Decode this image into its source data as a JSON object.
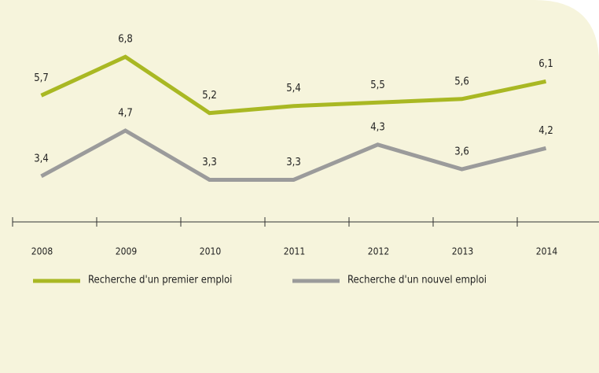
{
  "chart_data": {
    "type": "line",
    "categories": [
      "2008",
      "2009",
      "2010",
      "2011",
      "2012",
      "2013",
      "2014"
    ],
    "series": [
      {
        "name": "Recherche d'un premier emploi",
        "color": "#a9b823",
        "values": [
          5.7,
          6.8,
          5.2,
          5.4,
          5.5,
          5.6,
          6.1
        ],
        "value_labels": [
          "5,7",
          "6,8",
          "5,2",
          "5,4",
          "5,5",
          "5,6",
          "6,1"
        ]
      },
      {
        "name": "Recherche d'un nouvel emploi",
        "color": "#9b9b9b",
        "values": [
          3.4,
          4.7,
          3.3,
          3.3,
          4.3,
          3.6,
          4.2
        ],
        "value_labels": [
          "3,4",
          "4,7",
          "3,3",
          "3,3",
          "4,3",
          "3,6",
          "4,2"
        ]
      }
    ],
    "ylim": [
      2.1,
      7.5
    ]
  }
}
